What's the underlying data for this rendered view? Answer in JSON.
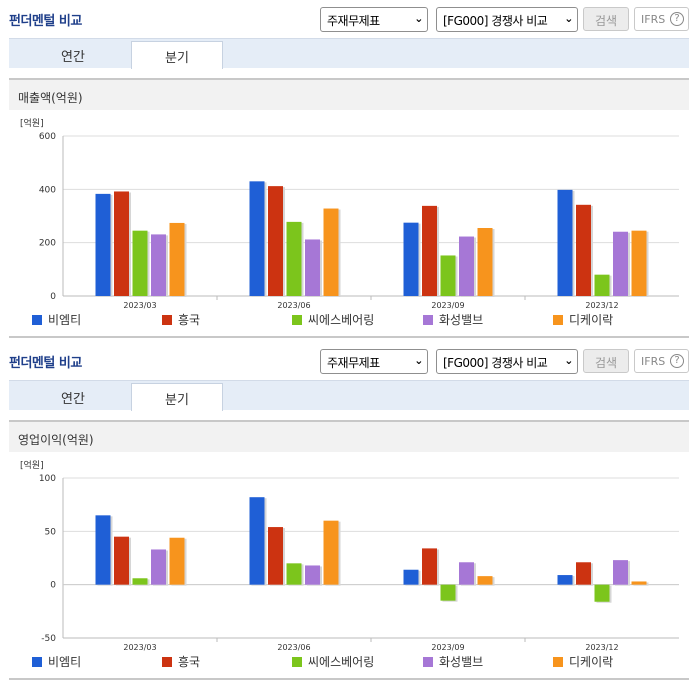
{
  "panels": [
    {
      "header": {
        "title": "펀더멘털 비교",
        "select1": "주재무제표",
        "select2": "[FG000] 경쟁사 비교",
        "search_label": "검색",
        "ifrs_label": "IFRS",
        "help_label": "?"
      },
      "tabs": [
        {
          "label": "연간",
          "active": false
        },
        {
          "label": "분기",
          "active": true
        }
      ],
      "section_title": "매출액(억원)",
      "chart_data": {
        "type": "bar",
        "unit_label": "[억원]",
        "categories": [
          "2023/03",
          "2023/06",
          "2023/09",
          "2023/12"
        ],
        "ylim": [
          0,
          600
        ],
        "yticks": [
          0,
          200,
          400,
          600
        ],
        "grid": true,
        "legend_position": "bottom",
        "series": [
          {
            "name": "비엠티",
            "color": "#1f5fd6",
            "values": [
              383,
              430,
              275,
              398
            ]
          },
          {
            "name": "흥국",
            "color": "#cc3311",
            "values": [
              392,
              412,
              338,
              342
            ]
          },
          {
            "name": "씨에스베어링",
            "color": "#7cc51c",
            "values": [
              245,
              278,
              152,
              80
            ]
          },
          {
            "name": "화성밸브",
            "color": "#a677d6",
            "values": [
              231,
              212,
              223,
              241
            ]
          },
          {
            "name": "디케이락",
            "color": "#f7941d",
            "values": [
              274,
              328,
              255,
              245
            ]
          }
        ]
      }
    },
    {
      "header": {
        "title": "펀더멘털 비교",
        "select1": "주재무제표",
        "select2": "[FG000] 경쟁사 비교",
        "search_label": "검색",
        "ifrs_label": "IFRS",
        "help_label": "?"
      },
      "tabs": [
        {
          "label": "연간",
          "active": false
        },
        {
          "label": "분기",
          "active": true
        }
      ],
      "section_title": "영업이익(억원)",
      "chart_data": {
        "type": "bar",
        "unit_label": "[억원]",
        "categories": [
          "2023/03",
          "2023/06",
          "2023/09",
          "2023/12"
        ],
        "ylim": [
          -50,
          100
        ],
        "yticks": [
          -50,
          0,
          50,
          100
        ],
        "grid": true,
        "legend_position": "bottom",
        "series": [
          {
            "name": "비엠티",
            "color": "#1f5fd6",
            "values": [
              65,
              82,
              14,
              9
            ]
          },
          {
            "name": "흥국",
            "color": "#cc3311",
            "values": [
              45,
              54,
              34,
              21
            ]
          },
          {
            "name": "씨에스베어링",
            "color": "#7cc51c",
            "values": [
              6,
              20,
              -15,
              -16
            ]
          },
          {
            "name": "화성밸브",
            "color": "#a677d6",
            "values": [
              33,
              18,
              21,
              23
            ]
          },
          {
            "name": "디케이락",
            "color": "#f7941d",
            "values": [
              44,
              60,
              8,
              3
            ]
          }
        ]
      }
    }
  ]
}
